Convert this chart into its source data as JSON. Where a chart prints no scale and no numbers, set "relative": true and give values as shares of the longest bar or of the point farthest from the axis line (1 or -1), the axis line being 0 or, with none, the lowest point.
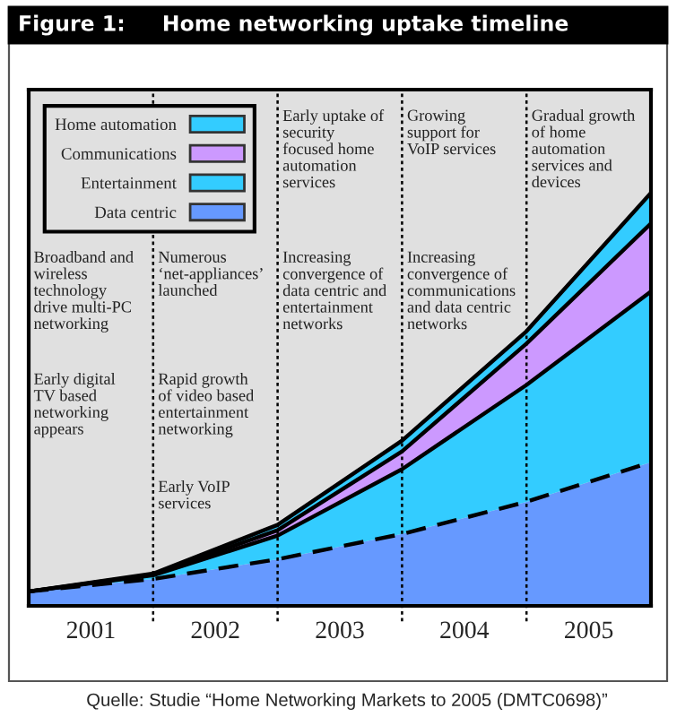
{
  "chart_data": {
    "type": "area",
    "title": "Figure 1:     Home networking uptake timeline",
    "relative": true,
    "stacked": true,
    "x": [
      2000.5,
      2001.5,
      2002.5,
      2003.5,
      2004.5,
      2005.5
    ],
    "xlim": [
      2000.5,
      2005.5
    ],
    "xticks": [
      2001,
      2002,
      2003,
      2004,
      2005
    ],
    "series": [
      {
        "name": "Data centric",
        "color": "#6699ff",
        "line_style": "dashed",
        "values": [
          0.035,
          0.065,
          0.113,
          0.174,
          0.252,
          0.348
        ]
      },
      {
        "name": "Entertainment",
        "color": "#33ccff",
        "line_style": "solid",
        "values": [
          0,
          0.009,
          0.057,
          0.157,
          0.283,
          0.413
        ]
      },
      {
        "name": "Communications",
        "color": "#cc99ff",
        "line_style": "solid",
        "values": [
          0,
          0.002,
          0.013,
          0.043,
          0.1,
          0.165
        ]
      },
      {
        "name": "Home automation",
        "color": "#33ccff",
        "line_style": "solid",
        "values": [
          0,
          0.002,
          0.013,
          0.026,
          0.03,
          0.074
        ]
      }
    ],
    "ref_lines": [
      {
        "axis": "x",
        "value": 2001.5,
        "color": "#000000",
        "line_style": "dotted"
      },
      {
        "axis": "x",
        "value": 2002.5,
        "color": "#000000",
        "line_style": "dotted"
      },
      {
        "axis": "x",
        "value": 2003.5,
        "color": "#000000",
        "line_style": "dotted"
      },
      {
        "axis": "x",
        "value": 2004.5,
        "color": "#000000",
        "line_style": "dotted"
      }
    ],
    "legend": "top left",
    "grid": false,
    "annotations": [
      "Broadband and\nwireless\ntechnology\ndrive multi-PC\nnetworking",
      "Early digital\nTV based\nnetworking\nappears",
      "Numerous\n‘net-appliances’\nlaunched",
      "Rapid growth\nof video based\nentertainment\nnetworking",
      "Early VoIP\nservices",
      "Early uptake of\nsecurity\nfocused home\nautomation\nservices",
      "Increasing\nconvergence of\ndata centric and\nentertainment\nnetworks",
      "Growing\nsupport for\nVoIP services",
      "Increasing\nconvergence of\ncommunications\nand data centric\nnetworks",
      "Gradual growth\nof home\nautomation\nservices and\ndevices",
      "Quelle: Studie “Home Networking Markets to 2005 (DMTC0698)”"
    ]
  }
}
